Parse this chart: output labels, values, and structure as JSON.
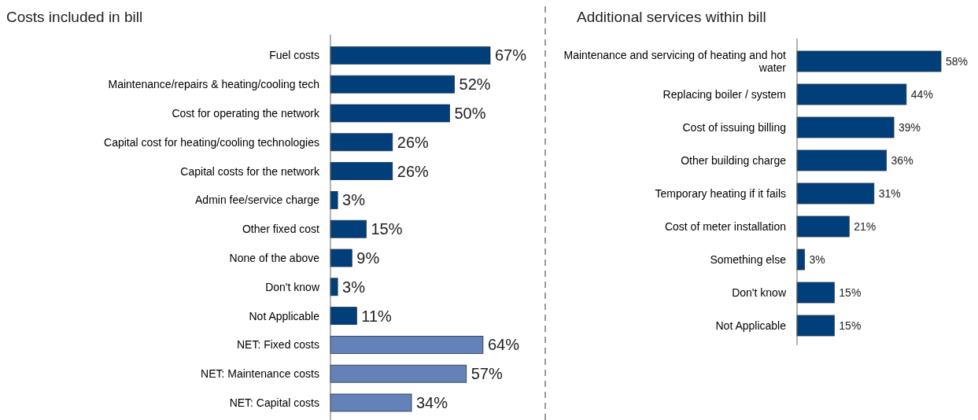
{
  "chart_data": [
    {
      "type": "bar",
      "orientation": "horizontal",
      "title": "Costs included in bill",
      "categories": [
        "Fuel costs",
        "Maintenance/repairs & heating/cooling tech",
        "Cost for operating the network",
        "Capital cost for heating/cooling technologies",
        "Capital costs for the network",
        "Admin fee/service charge",
        "Other fixed cost",
        "None of the above",
        "Don't know",
        "Not Applicable",
        "NET: Fixed costs",
        "NET: Maintenance costs",
        "NET: Capital costs"
      ],
      "values": [
        67,
        52,
        50,
        26,
        26,
        3,
        15,
        9,
        3,
        11,
        64,
        57,
        34
      ],
      "value_labels": [
        "67%",
        "52%",
        "50%",
        "26%",
        "26%",
        "3%",
        "15%",
        "9%",
        "3%",
        "11%",
        "64%",
        "57%",
        "34%"
      ],
      "colors": [
        "#003f7a",
        "#003f7a",
        "#003f7a",
        "#003f7a",
        "#003f7a",
        "#003f7a",
        "#003f7a",
        "#003f7a",
        "#003f7a",
        "#003f7a",
        "#6582b8",
        "#6582b8",
        "#6582b8"
      ]
    },
    {
      "type": "bar",
      "orientation": "horizontal",
      "title": "Additional services within bill",
      "categories": [
        "Maintenance and servicing of heating and hot water",
        "Replacing boiler / system",
        "Cost of issuing billing",
        "Other building charge",
        "Temporary heating if it fails",
        "Cost of meter installation",
        "Something else",
        "Don't know",
        "Not Applicable"
      ],
      "values": [
        58,
        44,
        39,
        36,
        31,
        21,
        3,
        15,
        15
      ],
      "value_labels": [
        "58%",
        "44%",
        "39%",
        "36%",
        "31%",
        "21%",
        "3%",
        "15%",
        "15%"
      ],
      "colors": [
        "#003f7a",
        "#003f7a",
        "#003f7a",
        "#003f7a",
        "#003f7a",
        "#003f7a",
        "#003f7a",
        "#003f7a",
        "#003f7a"
      ]
    }
  ]
}
